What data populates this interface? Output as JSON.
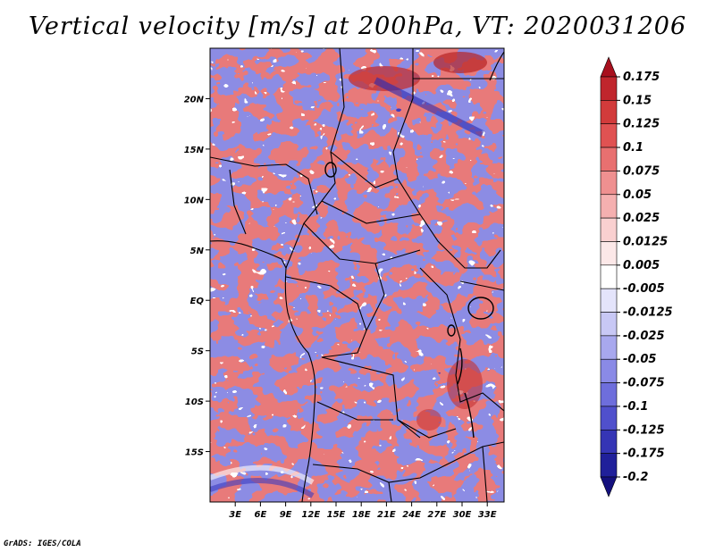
{
  "title": "Vertical velocity [m/s] at 200hPa, VT: 2020031206",
  "credit": "GrADS: IGES/COLA",
  "map": {
    "lon_range": [
      0,
      35
    ],
    "lat_range": [
      -20,
      25
    ],
    "lat_ticks": [
      {
        "value": 20,
        "label": "20N"
      },
      {
        "value": 15,
        "label": "15N"
      },
      {
        "value": 10,
        "label": "10N"
      },
      {
        "value": 5,
        "label": "5N"
      },
      {
        "value": 0,
        "label": "EQ"
      },
      {
        "value": -5,
        "label": "5S"
      },
      {
        "value": -10,
        "label": "10S"
      },
      {
        "value": -15,
        "label": "15S"
      }
    ],
    "lon_ticks": [
      {
        "value": 3,
        "label": "3E"
      },
      {
        "value": 6,
        "label": "6E"
      },
      {
        "value": 9,
        "label": "9E"
      },
      {
        "value": 12,
        "label": "12E"
      },
      {
        "value": 15,
        "label": "15E"
      },
      {
        "value": 18,
        "label": "18E"
      },
      {
        "value": 21,
        "label": "21E"
      },
      {
        "value": 24,
        "label": "24E"
      },
      {
        "value": 27,
        "label": "27E"
      },
      {
        "value": 30,
        "label": "30E"
      },
      {
        "value": 33,
        "label": "33E"
      }
    ]
  },
  "colorbar": {
    "labels": [
      "0.175",
      "0.15",
      "0.125",
      "0.1",
      "0.075",
      "0.05",
      "0.025",
      "0.0125",
      "0.005",
      "-0.005",
      "-0.0125",
      "-0.025",
      "-0.05",
      "-0.075",
      "-0.1",
      "-0.125",
      "-0.175",
      "-0.2"
    ],
    "colors": [
      "#a8101e",
      "#c0262d",
      "#d23b3b",
      "#e05252",
      "#e87070",
      "#ef9090",
      "#f5b0b0",
      "#f9d0d0",
      "#fce8e8",
      "#ffffff",
      "#e4e4fb",
      "#c8c8f5",
      "#a8a8ee",
      "#8a8ae6",
      "#6e6edc",
      "#5050cc",
      "#3535b5",
      "#20209a",
      "#14107e"
    ]
  }
}
